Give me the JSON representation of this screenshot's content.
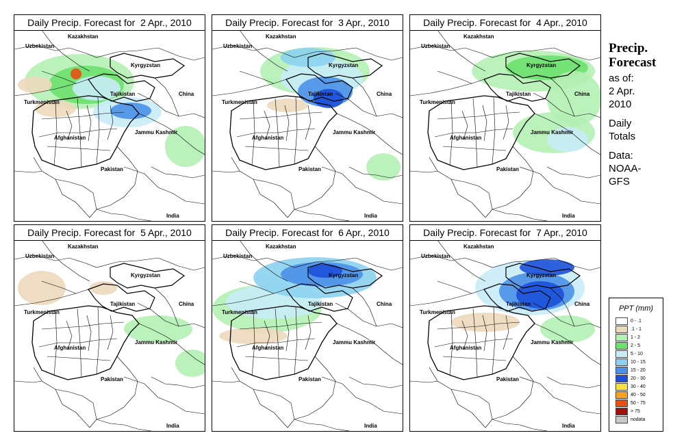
{
  "panels": [
    {
      "title_prefix": "Daily Precip. Forecast for  ",
      "date": "2 Apr., 2010",
      "variant": 0
    },
    {
      "title_prefix": "Daily Precip. Forecast for  ",
      "date": "3 Apr., 2010",
      "variant": 1
    },
    {
      "title_prefix": "Daily Precip. Forecast for  ",
      "date": "4 Apr., 2010",
      "variant": 2
    },
    {
      "title_prefix": "Daily Precip. Forecast for  ",
      "date": "5 Apr., 2010",
      "variant": 3
    },
    {
      "title_prefix": "Daily Precip. Forecast for  ",
      "date": "6 Apr., 2010",
      "variant": 4
    },
    {
      "title_prefix": "Daily Precip. Forecast for  ",
      "date": "7 Apr., 2010",
      "variant": 5
    }
  ],
  "map_labels": {
    "kazakhstan": "Kazakhstan",
    "uzbekistan": "Uzbekistan",
    "kyrgyzstan": "Kyrgyzstan",
    "tajikistan": "Tajikistan",
    "turkmenistan": "Turkmenistan",
    "china": "China",
    "afghanistan": "Afghanistan",
    "jammu_kashmir": "Jammu Kashmir",
    "pakistan": "Pakistan",
    "india": "India"
  },
  "side": {
    "heading_line1": "Precip.",
    "heading_line2": "Forecast",
    "asof": "as of:",
    "date1": "2 Apr.",
    "date2": "2010",
    "daily": "Daily",
    "totals": "Totals",
    "data": "Data:",
    "src1": "NOAA-",
    "src2": "GFS"
  },
  "legend": {
    "title": "PPT (mm)",
    "items": [
      {
        "label": "0 - .1",
        "color": "#ffffff"
      },
      {
        "label": ".1 - 1",
        "color": "#ecd9bd"
      },
      {
        "label": "1 - 2",
        "color": "#b4f0b4"
      },
      {
        "label": "2 - 5",
        "color": "#6ee06e"
      },
      {
        "label": "5 - 10",
        "color": "#c8ecf8"
      },
      {
        "label": "10 - 15",
        "color": "#8cd2f0"
      },
      {
        "label": "15 - 20",
        "color": "#4a90e8"
      },
      {
        "label": "20 - 30",
        "color": "#1c50d8"
      },
      {
        "label": "30 - 40",
        "color": "#f8e040"
      },
      {
        "label": "40 - 50",
        "color": "#f8a020"
      },
      {
        "label": "50 - 75",
        "color": "#e85010"
      },
      {
        "label": "> 75",
        "color": "#a01010"
      },
      {
        "label": "nodata",
        "color": "#c8c8c8"
      }
    ]
  }
}
